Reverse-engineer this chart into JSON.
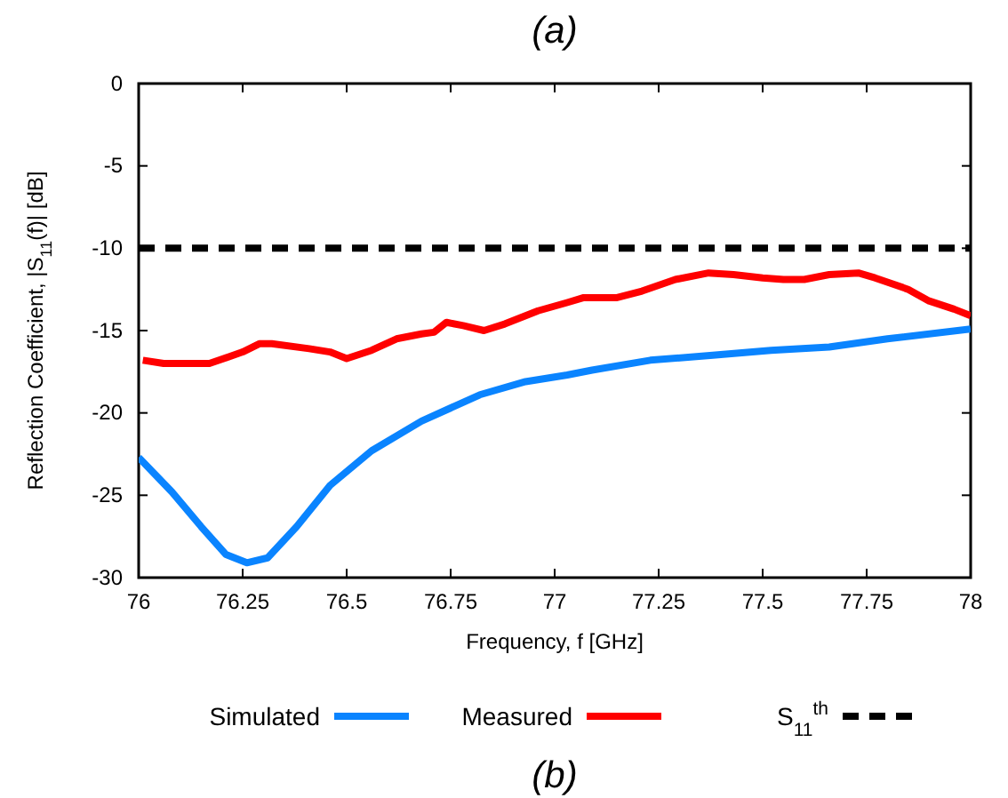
{
  "chart_data": {
    "type": "line",
    "title": "(a)",
    "xlabel": "Frequency, f [GHz]",
    "ylabel": "Reflection Coefficient, |S$_{11}$(f)| [dB]",
    "xlim": [
      76,
      78
    ],
    "xticks": [
      76,
      76.25,
      76.5,
      76.75,
      77,
      77.25,
      77.5,
      77.75,
      78
    ],
    "ylim": [
      -30,
      0
    ],
    "yticks": [
      -30,
      -25,
      -20,
      -15,
      -10,
      -5,
      0
    ],
    "grid": false,
    "legend": "bottom",
    "line_style": "solid",
    "marker": "none",
    "annotations": [
      "(b)"
    ],
    "series": [
      {
        "name": "Simulated",
        "color": "#0a84ff",
        "x": [
          76.0,
          76.08,
          76.15,
          76.21,
          76.26,
          76.31,
          76.38,
          76.46,
          76.56,
          76.68,
          76.82,
          76.93,
          77.03,
          77.09,
          77.23,
          77.38,
          77.52,
          77.66,
          77.8,
          78.0
        ],
        "values": [
          -22.7,
          -24.8,
          -26.9,
          -28.6,
          -29.1,
          -28.8,
          -26.9,
          -24.4,
          -22.3,
          -20.5,
          -18.9,
          -18.1,
          -17.7,
          -17.4,
          -16.8,
          -16.5,
          -16.2,
          -16.0,
          -15.5,
          -14.9
        ]
      },
      {
        "name": "Measured",
        "color": "#ff0000",
        "x": [
          76.01,
          76.06,
          76.17,
          76.25,
          76.29,
          76.32,
          76.41,
          76.46,
          76.5,
          76.56,
          76.62,
          76.68,
          76.71,
          76.74,
          76.78,
          76.83,
          76.88,
          76.96,
          77.03,
          77.07,
          77.15,
          77.21,
          77.29,
          77.37,
          77.43,
          77.5,
          77.55,
          77.6,
          77.66,
          77.73,
          77.77,
          77.85,
          77.9,
          77.96,
          78.0
        ],
        "values": [
          -16.8,
          -17.0,
          -17.0,
          -16.3,
          -15.8,
          -15.8,
          -16.1,
          -16.3,
          -16.7,
          -16.2,
          -15.5,
          -15.2,
          -15.1,
          -14.5,
          -14.7,
          -15.0,
          -14.6,
          -13.8,
          -13.3,
          -13.0,
          -13.0,
          -12.6,
          -11.9,
          -11.5,
          -11.6,
          -11.8,
          -11.9,
          -11.9,
          -11.6,
          -11.5,
          -11.8,
          -12.5,
          -13.2,
          -13.7,
          -14.1
        ]
      },
      {
        "name": "S$_{11}$$^{th}$",
        "color": "#000000",
        "line_style": "dashed",
        "x": [
          76,
          78
        ],
        "values": [
          -10,
          -10
        ]
      }
    ]
  }
}
